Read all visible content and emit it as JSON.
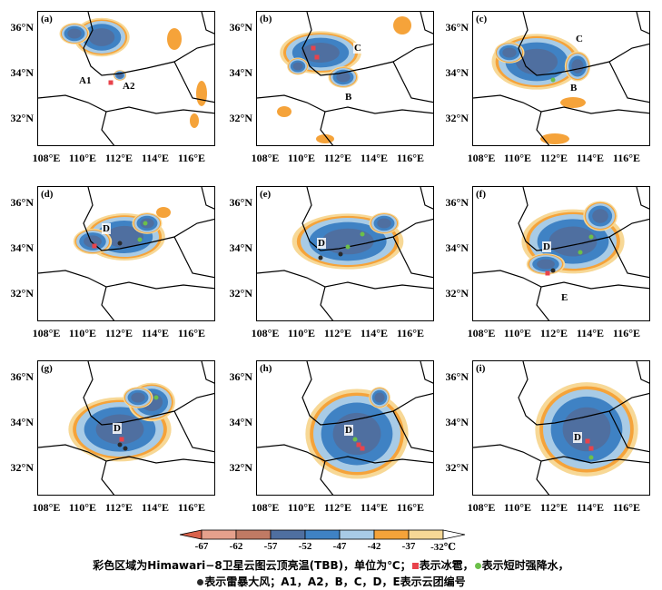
{
  "panels": [
    {
      "label": "(a)",
      "clouds": [
        "A1",
        "A2"
      ]
    },
    {
      "label": "(b)",
      "clouds": [
        "C",
        "B"
      ]
    },
    {
      "label": "(c)",
      "clouds": [
        "C",
        "B"
      ]
    },
    {
      "label": "(d)",
      "clouds": [
        "D"
      ]
    },
    {
      "label": "(e)",
      "clouds": [
        "D"
      ]
    },
    {
      "label": "(f)",
      "clouds": [
        "D",
        "E"
      ]
    },
    {
      "label": "(g)",
      "clouds": [
        "D"
      ]
    },
    {
      "label": "(h)",
      "clouds": [
        "D"
      ]
    },
    {
      "label": "(i)",
      "clouds": [
        "D"
      ]
    }
  ],
  "y_ticks": [
    "36°N",
    "34°N",
    "32°N"
  ],
  "x_ticks": [
    "108°E",
    "110°E",
    "112°E",
    "114°E",
    "116°E"
  ],
  "colorbar": {
    "values": [
      "-67",
      "-62",
      "-57",
      "-52",
      "-47",
      "-42",
      "-37",
      "-32"
    ],
    "unit": "℃",
    "colors": [
      "#d9614a",
      "#e5a08c",
      "#c07a64",
      "#4f6fa0",
      "#3f82c4",
      "#a8cbe6",
      "#f5a33a",
      "#f7d896",
      "#ffffff"
    ]
  },
  "caption": {
    "line1_a": "彩色区域为Himawari−8卫星云图云顶亮温(TBB)，单位为℃；",
    "line1_b": "表示冰雹，",
    "line1_c": "表示短时强降水，",
    "line2_a": "表示雷暴大风；A1，A2，B，C，D，E表示云团编号",
    "hail_color": "#e8434b",
    "rain_color": "#6cc04a",
    "wind_color": "#2a2a2a"
  }
}
